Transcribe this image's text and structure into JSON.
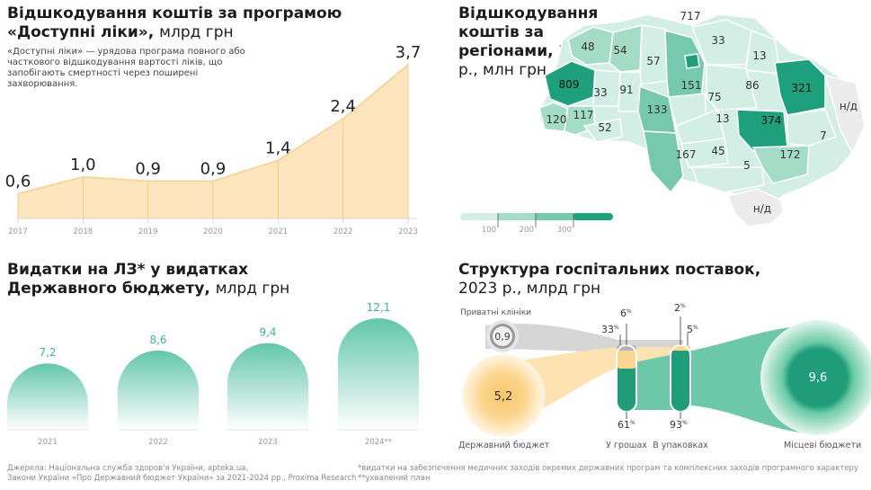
{
  "panel1": {
    "title_bold": "Відшкодування коштів за програмою «Доступні ліки»,",
    "title_light": "млрд грн",
    "note": "«Доступні ліки» — урядова програма повного або часткового відшкодування вартості ліків, що запобігають смертності через поширені захворювання."
  },
  "panel2": {
    "title_bold": "Відшкодування коштів за регіонами,",
    "title_light": "2023 р., млн грн",
    "legend_ticks": [
      "100",
      "200",
      "300"
    ],
    "na_label": "н/д"
  },
  "panel3": {
    "title_bold": "Видатки на ЛЗ* у видатках Державного бюджету,",
    "title_light": "млрд грн"
  },
  "panel4": {
    "title_bold": "Структура госпітальних поставок,",
    "title_light": "2023 р., млрд грн",
    "private_label": "Приватні клініки",
    "private_value": "0,9",
    "state_label": "Державний бюджет",
    "state_value": "5,2",
    "local_label": "Місцеві бюджети",
    "local_value": "9,6",
    "money_label": "У грошах",
    "pack_label": "В упаковках",
    "money_top": "33",
    "money_top2": "6",
    "money_bottom": "61",
    "pack_top": "5",
    "pack_top2": "2",
    "pack_bottom": "93",
    "pct": "%"
  },
  "footer": {
    "sources_1": "Джерела: Національна служба здоров'я України, apteka.ua,",
    "sources_2": "Закони України «Про Державний бюджет України» за 2021-2024 рр., Proxima Research",
    "footnote_1": "*видатки на забезпечення медичних заходів окремих державних програм та комплексних заходів програмного характеру",
    "footnote_2": "**ухвалений план"
  },
  "colors": {
    "area_fill": "#fde5bd",
    "area_line": "#f6cf93",
    "arch_top": "#66c9ae",
    "arch_bottom": "#ffffff",
    "arch_label": "#3fb496",
    "map_light": "#d3eee4",
    "map_mid": "#a5dcc8",
    "map_mid2": "#76c9ad",
    "map_dark": "#1ea07c",
    "map_na": "#ececec",
    "gray_flow": "#cfcfcf",
    "orange_flow": "#fde2b2",
    "green_flow": "#6dc7a9",
    "green_dark": "#1f9d78"
  },
  "chart_data": [
    {
      "type": "area",
      "x": [
        "2017",
        "2018",
        "2019",
        "2020",
        "2021",
        "2022",
        "2023"
      ],
      "values": [
        0.6,
        1.0,
        0.9,
        0.9,
        1.4,
        2.4,
        3.7
      ],
      "labels": [
        "0,6",
        "1,0",
        "0,9",
        "0,9",
        "1,4",
        "2,4",
        "3,7"
      ]
    },
    {
      "type": "heatmap",
      "regions": [
        {
          "value": "48"
        },
        {
          "value": "54"
        },
        {
          "value": "57"
        },
        {
          "value": "717"
        },
        {
          "value": "33"
        },
        {
          "value": "13"
        },
        {
          "value": "809"
        },
        {
          "value": "33"
        },
        {
          "value": "91"
        },
        {
          "value": "151"
        },
        {
          "value": "75"
        },
        {
          "value": "86"
        },
        {
          "value": "321"
        },
        {
          "value": "120"
        },
        {
          "value": "117"
        },
        {
          "value": "133"
        },
        {
          "value": "13"
        },
        {
          "value": "374"
        },
        {
          "value": "52"
        },
        {
          "value": "7"
        },
        {
          "value": "167"
        },
        {
          "value": "45"
        },
        {
          "value": "172"
        },
        {
          "value": "5"
        },
        {
          "value": "н/д"
        },
        {
          "value": "н/д"
        }
      ],
      "legend": [
        "100",
        "200",
        "300"
      ]
    },
    {
      "type": "bar",
      "categories": [
        "2021",
        "2022",
        "2023",
        "2024**"
      ],
      "values": [
        7.2,
        8.6,
        9.4,
        12.1
      ],
      "labels": [
        "7,2",
        "8,6",
        "9,4",
        "12,1"
      ]
    }
  ]
}
